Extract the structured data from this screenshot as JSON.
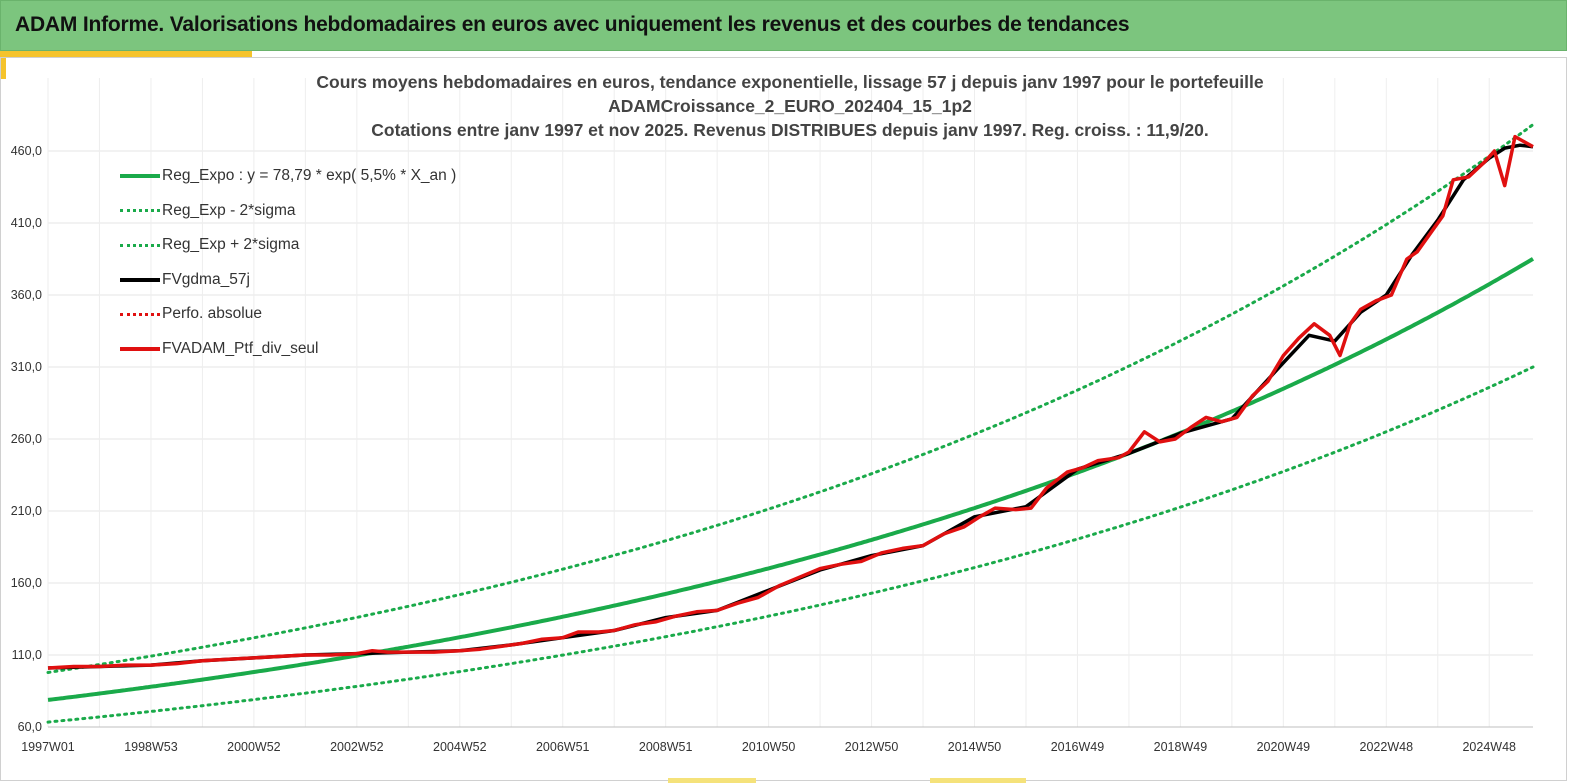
{
  "banner": {
    "title": "ADAM Informe. Valorisations hebdomadaires en euros avec uniquement les revenus et des courbes de tendances"
  },
  "colors": {
    "banner_bg": "#7cc57e",
    "accent": "#f5c32c",
    "reg_green": "#1aaa4a",
    "fv_black": "#000000",
    "ptf_red": "#e01010"
  },
  "chart_data": {
    "type": "line",
    "title_lines": [
      "Cours moyens hebdomadaires  en euros, tendance exponentielle, lissage 57 j depuis janv 1997 pour le portefeuille",
      "ADAMCroissance_2_EURO_202404_15_1p2",
      "Cotations  entre janv 1997 et nov 2025. Revenus DISTRIBUES depuis janv 1997. Reg. croiss. : 11,9/20."
    ],
    "xlabel": "",
    "ylabel": "",
    "ylim": [
      60,
      500
    ],
    "xlim": [
      1997.0,
      2025.85
    ],
    "y_ticks": [
      "60,0",
      "110,0",
      "160,0",
      "210,0",
      "260,0",
      "310,0",
      "360,0",
      "410,0",
      "460,0"
    ],
    "y_tick_values": [
      60,
      110,
      160,
      210,
      260,
      310,
      360,
      410,
      460
    ],
    "x_tick_labels": [
      "1997W01",
      "1998W53",
      "2000W52",
      "2002W52",
      "2004W52",
      "2006W51",
      "2008W51",
      "2010W50",
      "2012W50",
      "2014W50",
      "2016W49",
      "2018W49",
      "2020W49",
      "2022W48",
      "2024W48"
    ],
    "x_tick_values": [
      1997.0,
      1999.0,
      2001.0,
      2003.0,
      2005.0,
      2007.0,
      2009.0,
      2011.0,
      2013.0,
      2015.0,
      2017.0,
      2019.0,
      2021.0,
      2023.0,
      2025.0
    ],
    "legend": [
      {
        "label": "Reg_Expo : y = 78,79 * exp( 5,5% *  X_an )",
        "color": "#1aaa4a",
        "style": "solid",
        "width": 4
      },
      {
        "label": "Reg_Exp - 2*sigma",
        "color": "#1aaa4a",
        "style": "dotted",
        "width": 3
      },
      {
        "label": "Reg_Exp + 2*sigma",
        "color": "#1aaa4a",
        "style": "dotted",
        "width": 3
      },
      {
        "label": "FVgdma_57j",
        "color": "#000000",
        "style": "solid",
        "width": 4
      },
      {
        "label": "Perfo. absolue",
        "color": "#e01010",
        "style": "dotted",
        "width": 3
      },
      {
        "label": "FVADAM_Ptf_div_seul",
        "color": "#e01010",
        "style": "solid",
        "width": 4
      }
    ],
    "regression": {
      "a": 78.79,
      "rate": 0.055,
      "sigma_low_factor": 0.805,
      "sigma_high_factor": 1.242
    },
    "series": [
      {
        "name": "FVADAM_Ptf_div_seul",
        "x": [
          1997.0,
          1997.5,
          1998.0,
          1998.5,
          1999.0,
          1999.5,
          2000.0,
          2000.5,
          2001.0,
          2001.5,
          2002.0,
          2002.5,
          2003.0,
          2003.3,
          2003.6,
          2004.0,
          2004.5,
          2005.0,
          2005.4,
          2005.8,
          2006.2,
          2006.6,
          2007.0,
          2007.3,
          2007.7,
          2008.0,
          2008.4,
          2008.8,
          2009.2,
          2009.6,
          2010.0,
          2010.4,
          2010.8,
          2011.2,
          2011.6,
          2012.0,
          2012.4,
          2012.8,
          2013.2,
          2013.6,
          2014.0,
          2014.4,
          2014.8,
          2015.1,
          2015.4,
          2015.8,
          2016.1,
          2016.4,
          2016.8,
          2017.1,
          2017.4,
          2017.8,
          2018.0,
          2018.3,
          2018.6,
          2018.9,
          2019.2,
          2019.5,
          2019.8,
          2020.1,
          2020.4,
          2020.7,
          2021.0,
          2021.3,
          2021.6,
          2021.9,
          2022.1,
          2022.3,
          2022.5,
          2022.8,
          2023.1,
          2023.4,
          2023.6,
          2023.9,
          2024.1,
          2024.3,
          2024.6,
          2024.9,
          2025.1,
          2025.3,
          2025.5,
          2025.7,
          2025.85
        ],
        "values": [
          101,
          102,
          102,
          103,
          103,
          104,
          106,
          107,
          108,
          109,
          110,
          110,
          111,
          113,
          112,
          112,
          112,
          113,
          114,
          116,
          118,
          121,
          122,
          126,
          126,
          127,
          131,
          133,
          137,
          140,
          141,
          146,
          150,
          158,
          164,
          170,
          173,
          175,
          181,
          184,
          186,
          194,
          199,
          206,
          212,
          211,
          212,
          226,
          237,
          240,
          245,
          247,
          251,
          265,
          258,
          260,
          268,
          275,
          272,
          275,
          290,
          300,
          318,
          330,
          340,
          332,
          318,
          340,
          350,
          356,
          360,
          385,
          390,
          405,
          415,
          440,
          442,
          452,
          460,
          436,
          470,
          466,
          463
        ]
      },
      {
        "name": "FVgdma_57j",
        "x": [
          1997.0,
          1998.0,
          1999.0,
          2000.0,
          2001.0,
          2002.0,
          2003.0,
          2004.0,
          2005.0,
          2006.0,
          2007.0,
          2008.0,
          2009.0,
          2010.0,
          2011.0,
          2012.0,
          2013.0,
          2014.0,
          2015.0,
          2016.0,
          2017.0,
          2018.0,
          2019.0,
          2020.0,
          2021.0,
          2021.5,
          2022.0,
          2022.5,
          2023.0,
          2023.5,
          2024.0,
          2024.5,
          2025.0,
          2025.3,
          2025.6,
          2025.85
        ],
        "values": [
          101,
          102,
          103,
          106,
          108,
          110,
          111,
          112,
          113,
          117,
          122,
          127,
          136,
          141,
          155,
          169,
          179,
          186,
          206,
          213,
          239,
          250,
          264,
          274,
          313,
          332,
          328,
          348,
          360,
          388,
          412,
          440,
          455,
          462,
          464,
          463
        ]
      }
    ]
  }
}
